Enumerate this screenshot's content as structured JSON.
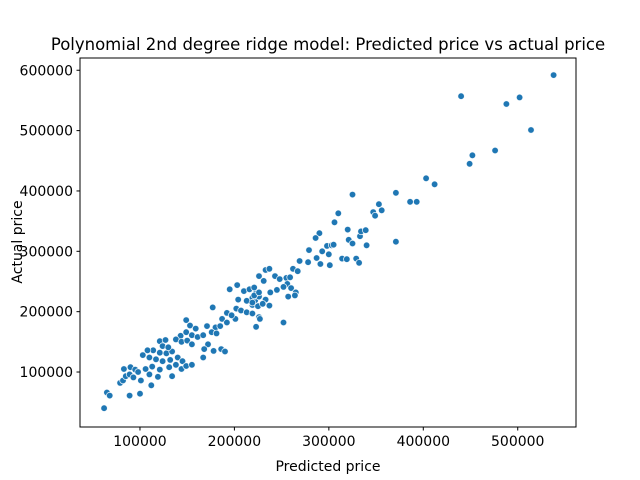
{
  "chart_data": {
    "type": "scatter",
    "title": "Polynomial 2nd degree ridge model: Predicted price vs actual price",
    "xlabel": "Predicted price",
    "ylabel": "Actual price",
    "x_ticks": [
      100000,
      200000,
      300000,
      400000,
      500000
    ],
    "y_ticks": [
      100000,
      200000,
      300000,
      400000,
      500000,
      600000
    ],
    "xlim": [
      36500,
      561700
    ],
    "ylim": [
      8900,
      620300
    ],
    "grid": false,
    "legend": "none",
    "marker_color": "#1f77b4",
    "marker_edge_color": "#ffffff",
    "points": [
      [
        62000,
        40000
      ],
      [
        65000,
        66000
      ],
      [
        68000,
        61000
      ],
      [
        79000,
        82000
      ],
      [
        82000,
        86000
      ],
      [
        85000,
        93000
      ],
      [
        89000,
        96000
      ],
      [
        93000,
        91000
      ],
      [
        89000,
        61000
      ],
      [
        100000,
        64000
      ],
      [
        83000,
        105000
      ],
      [
        90000,
        108000
      ],
      [
        95000,
        104000
      ],
      [
        98000,
        100000
      ],
      [
        101000,
        86000
      ],
      [
        112000,
        78000
      ],
      [
        110000,
        96000
      ],
      [
        119000,
        92000
      ],
      [
        134000,
        93000
      ],
      [
        103000,
        128000
      ],
      [
        110000,
        124000
      ],
      [
        117000,
        121000
      ],
      [
        124000,
        118000
      ],
      [
        132000,
        120000
      ],
      [
        140000,
        124000
      ],
      [
        145000,
        118000
      ],
      [
        138000,
        112000
      ],
      [
        131000,
        108000
      ],
      [
        113000,
        109000
      ],
      [
        106000,
        105000
      ],
      [
        121000,
        104000
      ],
      [
        144000,
        105000
      ],
      [
        149000,
        110000
      ],
      [
        155000,
        112000
      ],
      [
        114000,
        136000
      ],
      [
        108000,
        136000
      ],
      [
        121000,
        132000
      ],
      [
        128000,
        131000
      ],
      [
        134000,
        134000
      ],
      [
        121000,
        151000
      ],
      [
        127000,
        153000
      ],
      [
        124000,
        143000
      ],
      [
        130000,
        141000
      ],
      [
        143000,
        160000
      ],
      [
        138000,
        154000
      ],
      [
        144000,
        150000
      ],
      [
        150000,
        152000
      ],
      [
        155000,
        146000
      ],
      [
        149000,
        166000
      ],
      [
        155000,
        161000
      ],
      [
        161000,
        158000
      ],
      [
        153000,
        177000
      ],
      [
        159000,
        172000
      ],
      [
        167000,
        161000
      ],
      [
        167000,
        124000
      ],
      [
        171000,
        176000
      ],
      [
        180000,
        174000
      ],
      [
        185000,
        176000
      ],
      [
        176000,
        166000
      ],
      [
        181000,
        164000
      ],
      [
        172000,
        146000
      ],
      [
        168000,
        138000
      ],
      [
        178000,
        135000
      ],
      [
        186000,
        138000
      ],
      [
        190000,
        134000
      ],
      [
        177000,
        207000
      ],
      [
        187000,
        188000
      ],
      [
        192000,
        182000
      ],
      [
        201000,
        188000
      ],
      [
        192000,
        198000
      ],
      [
        197000,
        194000
      ],
      [
        202000,
        205000
      ],
      [
        207000,
        202000
      ],
      [
        213000,
        199000
      ],
      [
        219000,
        197000
      ],
      [
        219000,
        211000
      ],
      [
        225000,
        209000
      ],
      [
        204000,
        220000
      ],
      [
        213000,
        218000
      ],
      [
        222000,
        219000
      ],
      [
        219000,
        223000
      ],
      [
        226000,
        225000
      ],
      [
        223000,
        231000
      ],
      [
        210000,
        234000
      ],
      [
        216000,
        237000
      ],
      [
        203000,
        244000
      ],
      [
        195000,
        237000
      ],
      [
        223000,
        175000
      ],
      [
        226000,
        191000
      ],
      [
        227000,
        188000
      ],
      [
        149000,
        186000
      ],
      [
        221000,
        227000
      ],
      [
        226000,
        232000
      ],
      [
        221000,
        240000
      ],
      [
        233000,
        220000
      ],
      [
        230000,
        213000
      ],
      [
        237000,
        210000
      ],
      [
        219000,
        215000
      ],
      [
        231000,
        251000
      ],
      [
        238000,
        232000
      ],
      [
        245000,
        236000
      ],
      [
        243000,
        259000
      ],
      [
        248000,
        254000
      ],
      [
        255000,
        256000
      ],
      [
        259000,
        257000
      ],
      [
        256000,
        246000
      ],
      [
        252000,
        241000
      ],
      [
        260000,
        239000
      ],
      [
        265000,
        232000
      ],
      [
        257000,
        225000
      ],
      [
        264000,
        227000
      ],
      [
        252000,
        182000
      ],
      [
        233000,
        269000
      ],
      [
        237000,
        271000
      ],
      [
        226000,
        259000
      ],
      [
        262000,
        271000
      ],
      [
        267000,
        267000
      ],
      [
        269000,
        284000
      ],
      [
        278000,
        282000
      ],
      [
        279000,
        302000
      ],
      [
        287000,
        289000
      ],
      [
        291000,
        279000
      ],
      [
        293000,
        300000
      ],
      [
        298000,
        309000
      ],
      [
        300000,
        295000
      ],
      [
        303000,
        310000
      ],
      [
        305000,
        311000
      ],
      [
        301000,
        277000
      ],
      [
        306000,
        348000
      ],
      [
        310000,
        363000
      ],
      [
        290000,
        330000
      ],
      [
        286000,
        322000
      ],
      [
        314000,
        288000
      ],
      [
        319000,
        287000
      ],
      [
        329000,
        288000
      ],
      [
        332000,
        281000
      ],
      [
        321000,
        319000
      ],
      [
        325000,
        313000
      ],
      [
        333000,
        325000
      ],
      [
        320000,
        336000
      ],
      [
        334000,
        333000
      ],
      [
        339000,
        335000
      ],
      [
        340000,
        310000
      ],
      [
        325000,
        394000
      ],
      [
        347000,
        365000
      ],
      [
        356000,
        368000
      ],
      [
        349000,
        359000
      ],
      [
        353000,
        378000
      ],
      [
        371000,
        397000
      ],
      [
        371000,
        316000
      ],
      [
        386000,
        382000
      ],
      [
        393000,
        382000
      ],
      [
        403000,
        421000
      ],
      [
        412000,
        411000
      ],
      [
        440000,
        557000
      ],
      [
        449000,
        445000
      ],
      [
        452000,
        459000
      ],
      [
        476000,
        467000
      ],
      [
        488000,
        544000
      ],
      [
        502000,
        555000
      ],
      [
        514000,
        501000
      ],
      [
        538000,
        592000
      ]
    ]
  }
}
